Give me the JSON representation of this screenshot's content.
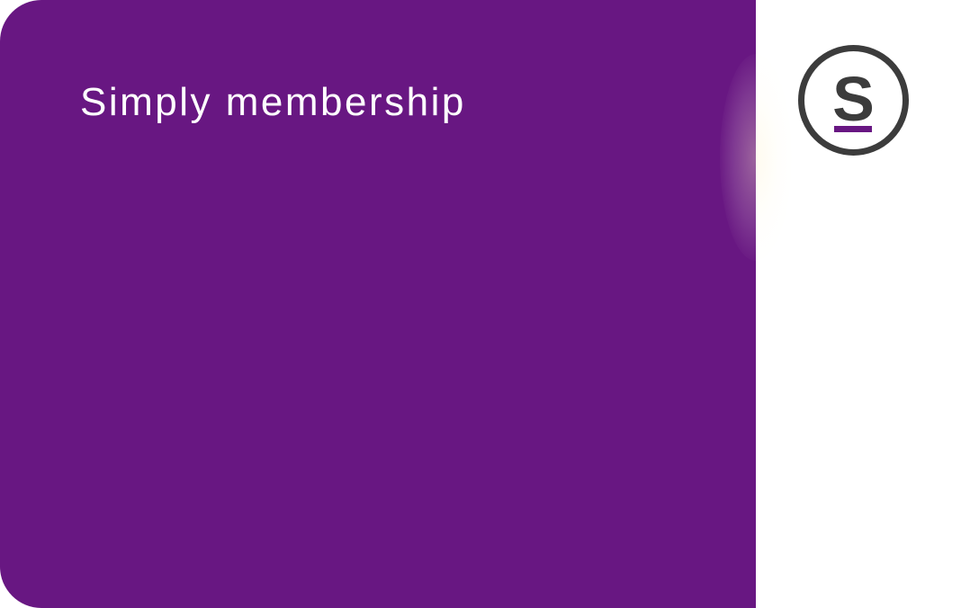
{
  "card": {
    "title": "Simply membership",
    "background_color": "#681782"
  },
  "logo": {
    "letter": "S",
    "ring_color": "#3c3c3c",
    "underline_color": "#681782",
    "icon": "brand-s-logo-icon"
  }
}
